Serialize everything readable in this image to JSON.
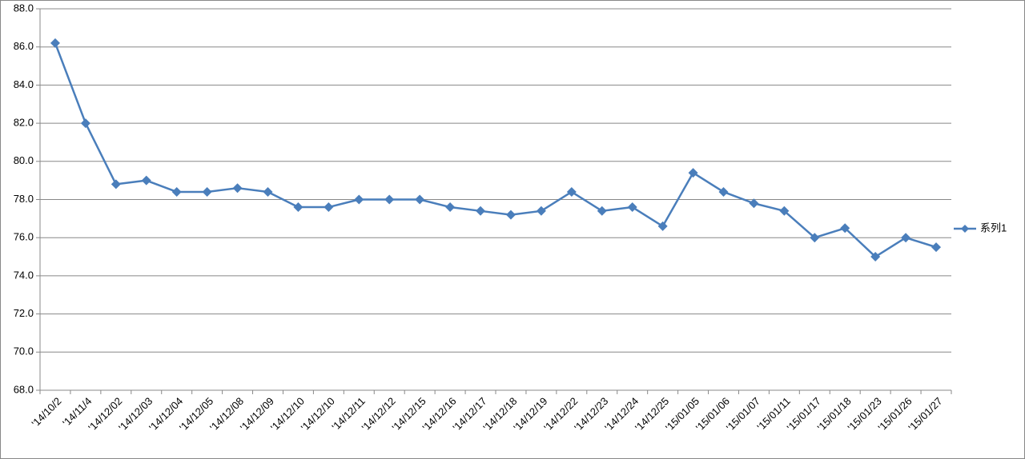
{
  "chart_data": {
    "type": "line",
    "categories": [
      "'14/10/2",
      "'14/11/4",
      "'14/12/02",
      "'14/12/03",
      "'14/12/04",
      "'14/12/05",
      "'14/12/08",
      "'14/12/09",
      "'14/12/10",
      "'14/12/10",
      "'14/12/11",
      "'14/12/12",
      "'14/12/15",
      "'14/12/16",
      "'14/12/17",
      "'14/12/18",
      "'14/12/19",
      "'14/12/22",
      "'14/12/23",
      "'14/12/24",
      "'14/12/25",
      "'15/01/05",
      "'15/01/06",
      "'15/01/07",
      "'15/01/11",
      "'15/01/17",
      "'15/01/18",
      "'15/01/23",
      "'15/01/26",
      "'15/01/27"
    ],
    "series": [
      {
        "name": "系列1",
        "color": "#4a7ebb",
        "values": [
          86.2,
          82.0,
          78.8,
          79.0,
          78.4,
          78.4,
          78.6,
          78.4,
          77.6,
          77.6,
          78.0,
          78.0,
          78.0,
          77.6,
          77.4,
          77.2,
          77.4,
          78.4,
          77.4,
          77.6,
          76.6,
          79.4,
          78.4,
          77.8,
          77.4,
          76.0,
          76.5,
          75.0,
          76.0,
          75.5
        ]
      }
    ],
    "ylim": [
      68,
      88
    ],
    "yticks": [
      {
        "value": 68,
        "label": "68.0"
      },
      {
        "value": 70,
        "label": "70.0"
      },
      {
        "value": 72,
        "label": "72.0"
      },
      {
        "value": 74,
        "label": "74.0"
      },
      {
        "value": 76,
        "label": "76.0"
      },
      {
        "value": 78,
        "label": "78.0"
      },
      {
        "value": 80,
        "label": "80.0"
      },
      {
        "value": 82,
        "label": "82.0"
      },
      {
        "value": 84,
        "label": "84.0"
      },
      {
        "value": 86,
        "label": "86.0"
      },
      {
        "value": 88,
        "label": "88.0"
      }
    ],
    "grid": true,
    "legend": "right"
  }
}
